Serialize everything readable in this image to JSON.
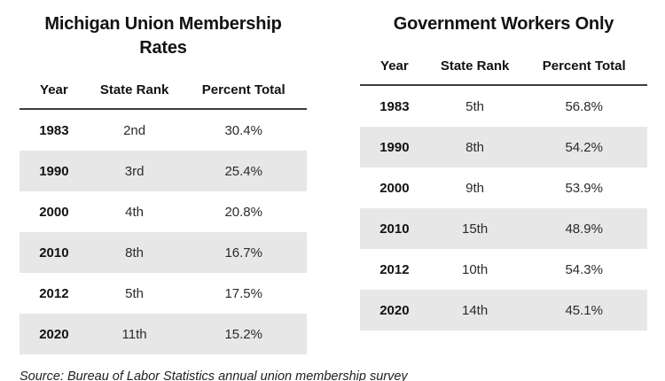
{
  "chart_data": [
    {
      "type": "table",
      "title": "Michigan Union Membership Rates",
      "columns": [
        "Year",
        "State Rank",
        "Percent Total"
      ],
      "rows": [
        [
          "1983",
          "2nd",
          "30.4%"
        ],
        [
          "1990",
          "3rd",
          "25.4%"
        ],
        [
          "2000",
          "4th",
          "20.8%"
        ],
        [
          "2010",
          "8th",
          "16.7%"
        ],
        [
          "2012",
          "5th",
          "17.5%"
        ],
        [
          "2020",
          "11th",
          "15.2%"
        ]
      ]
    },
    {
      "type": "table",
      "title": "Government Workers Only",
      "columns": [
        "Year",
        "State Rank",
        "Percent Total"
      ],
      "rows": [
        [
          "1983",
          "5th",
          "56.8%"
        ],
        [
          "1990",
          "8th",
          "54.2%"
        ],
        [
          "2000",
          "9th",
          "53.9%"
        ],
        [
          "2010",
          "15th",
          "48.9%"
        ],
        [
          "2012",
          "10th",
          "54.3%"
        ],
        [
          "2020",
          "14th",
          "45.1%"
        ]
      ]
    }
  ],
  "source_note": "Source: Bureau of Labor Statistics annual union membership survey",
  "colors": {
    "row_stripe": "#e7e7e7",
    "header_rule": "#3d3d3d",
    "text": "#1a1a1a",
    "background": "#ffffff"
  }
}
